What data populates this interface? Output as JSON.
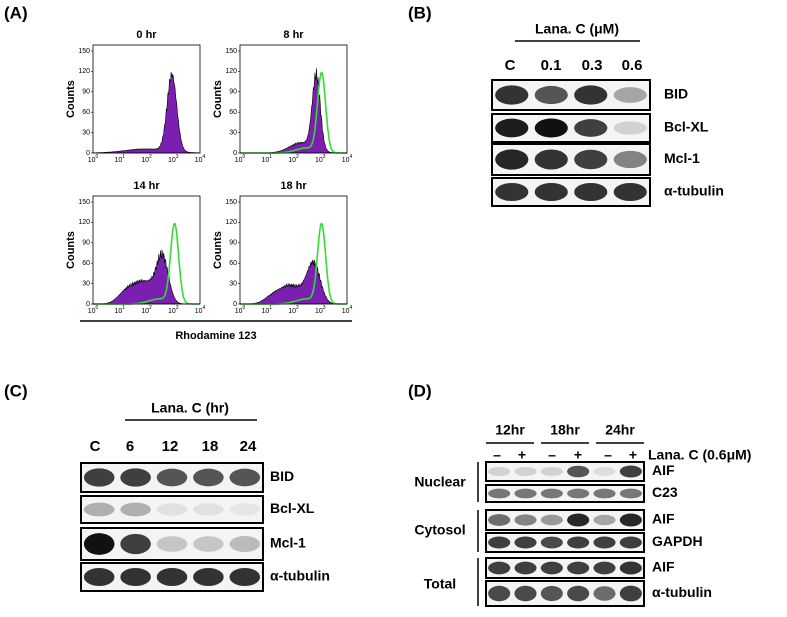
{
  "panels": {
    "A": {
      "label": "(A)",
      "plots": [
        {
          "title": "0 hr"
        },
        {
          "title": "8 hr"
        },
        {
          "title": "14 hr"
        },
        {
          "title": "18 hr"
        }
      ],
      "y_axis_label": "Counts",
      "yticks": [
        "0",
        "30",
        "60",
        "90",
        "120",
        "150"
      ],
      "xticks": [
        {
          "base": "10",
          "exp": "0"
        },
        {
          "base": "10",
          "exp": "1"
        },
        {
          "base": "10",
          "exp": "2"
        },
        {
          "base": "10",
          "exp": "3"
        },
        {
          "base": "10",
          "exp": "4"
        }
      ],
      "x_axis_label": "Rhodamine 123"
    },
    "B": {
      "label": "(B)",
      "treatment": "Lana. C (μM)",
      "lanes": [
        "C",
        "0.1",
        "0.3",
        "0.6"
      ],
      "blots": [
        "BID",
        "Bcl-XL",
        "Mcl-1",
        "α-tubulin"
      ]
    },
    "C": {
      "label": "(C)",
      "treatment": "Lana. C (hr)",
      "lanes": [
        "C",
        "6",
        "12",
        "18",
        "24"
      ],
      "blots": [
        "BID",
        "Bcl-XL",
        "Mcl-1",
        "α-tubulin"
      ]
    },
    "D": {
      "label": "(D)",
      "timepoints": [
        "12hr",
        "18hr",
        "24hr"
      ],
      "signs": [
        "–",
        "+",
        "–",
        "+",
        "–",
        "+"
      ],
      "treatment": "Lana. C (0.6μM)",
      "groups": [
        {
          "name": "Nuclear",
          "blots": [
            "AIF",
            "C23"
          ]
        },
        {
          "name": "Cytosol",
          "blots": [
            "AIF",
            "GAPDH"
          ]
        },
        {
          "name": "Total",
          "blots": [
            "AIF",
            "α-tubulin"
          ]
        }
      ]
    }
  }
}
